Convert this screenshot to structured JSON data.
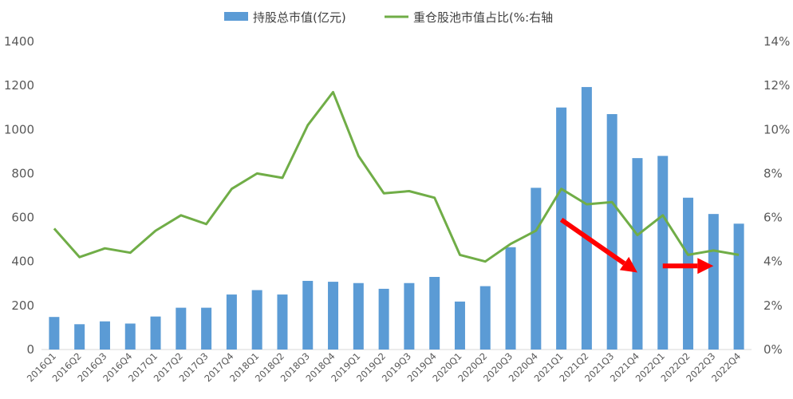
{
  "chart_data": {
    "type": "bar",
    "categories": [
      "2016Q1",
      "2016Q2",
      "2016Q3",
      "2016Q4",
      "2017Q1",
      "2017Q2",
      "2017Q3",
      "2017Q4",
      "2018Q1",
      "2018Q2",
      "2018Q3",
      "2018Q4",
      "2019Q1",
      "2019Q2",
      "2019Q3",
      "2019Q4",
      "2020Q1",
      "2020Q2",
      "2020Q3",
      "2020Q4",
      "2021Q1",
      "2021Q2",
      "2021Q3",
      "2021Q4",
      "2022Q1",
      "2022Q2",
      "2022Q3",
      "2022Q4"
    ],
    "series": [
      {
        "name": "持股总市值(亿元)",
        "type": "bar",
        "axis": "left",
        "color": "#5b9bd5",
        "values": [
          148,
          115,
          128,
          118,
          150,
          190,
          190,
          250,
          270,
          250,
          312,
          308,
          302,
          276,
          302,
          330,
          218,
          288,
          465,
          735,
          1100,
          1193,
          1070,
          870,
          880,
          690,
          616,
          572
        ]
      },
      {
        "name": "重仓股池市值占比(%:右轴",
        "type": "line",
        "axis": "right",
        "color": "#70ad47",
        "values": [
          5.5,
          4.2,
          4.6,
          4.4,
          5.4,
          6.1,
          5.7,
          7.3,
          8.0,
          7.8,
          10.2,
          11.7,
          8.8,
          7.1,
          7.2,
          6.9,
          4.3,
          4.0,
          4.8,
          5.4,
          7.3,
          6.6,
          6.7,
          5.2,
          6.1,
          4.3,
          4.5,
          4.3
        ]
      }
    ],
    "y_left": {
      "min": 0,
      "max": 1400,
      "ticks": [
        "0",
        "200",
        "400",
        "600",
        "800",
        "1000",
        "1200",
        "1400"
      ]
    },
    "y_right": {
      "min": 0,
      "max": 14,
      "ticks": [
        "0%",
        "2%",
        "4%",
        "6%",
        "8%",
        "10%",
        "12%",
        "14%"
      ]
    },
    "legend": {
      "position": "top-center"
    },
    "grid": false,
    "annotations": [
      {
        "kind": "arrow",
        "color": "#ff0000",
        "from": {
          "x": "2021Q1",
          "y": 5.9
        },
        "to": {
          "x": "2021Q4",
          "y": 3.5
        }
      },
      {
        "kind": "arrow",
        "color": "#ff0000",
        "from": {
          "x": "2022Q1",
          "y": 3.8
        },
        "to": {
          "x": "2022Q3",
          "y": 3.8
        }
      }
    ]
  }
}
